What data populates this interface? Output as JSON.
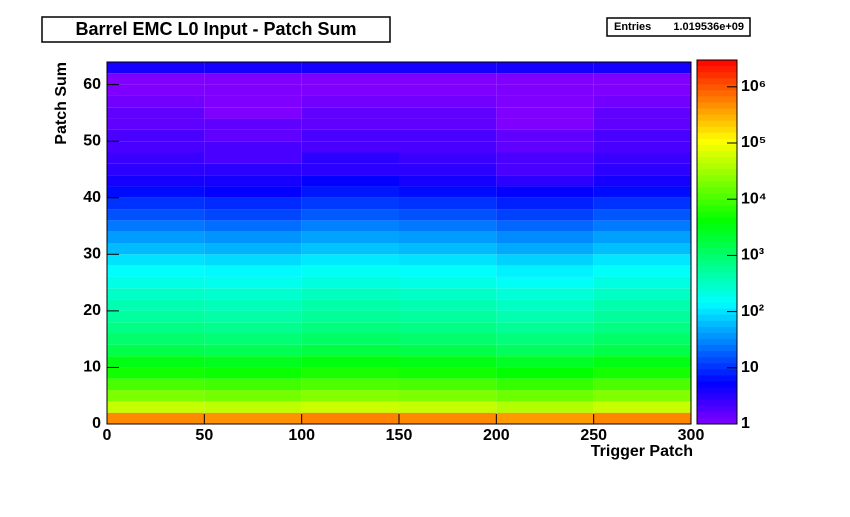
{
  "chart_data": {
    "type": "heatmap",
    "title": "Barrel EMC L0 Input - Patch Sum",
    "stats": {
      "label": "Entries",
      "value": "1.019536e+09"
    },
    "xlabel": "Trigger Patch",
    "ylabel": "Patch Sum",
    "xbins": [
      0,
      50,
      100,
      150,
      200,
      250,
      300
    ],
    "ybins": [
      0,
      2,
      4,
      6,
      8,
      10,
      12,
      14,
      16,
      18,
      20,
      22,
      24,
      26,
      28,
      30,
      32,
      34,
      36,
      38,
      40,
      42,
      44,
      46,
      48,
      50,
      52,
      54,
      56,
      58,
      60,
      62,
      64
    ],
    "z": [
      [
        500000,
        450000,
        550000,
        500000,
        400000,
        520000
      ],
      [
        50000,
        45000,
        55000,
        50000,
        40000,
        52000
      ],
      [
        20000,
        18000,
        22000,
        20000,
        16000,
        21000
      ],
      [
        10000,
        9000,
        11000,
        10000,
        8000,
        10500
      ],
      [
        5000,
        4500,
        5500,
        5000,
        4000,
        5200
      ],
      [
        3000,
        2700,
        3300,
        3000,
        2400,
        3100
      ],
      [
        1500,
        1350,
        1650,
        1500,
        1200,
        1550
      ],
      [
        1000,
        900,
        1100,
        1000,
        800,
        1050
      ],
      [
        700,
        630,
        770,
        700,
        560,
        730
      ],
      [
        500,
        450,
        550,
        500,
        400,
        520
      ],
      [
        400,
        360,
        440,
        400,
        320,
        420
      ],
      [
        300,
        270,
        330,
        300,
        240,
        310
      ],
      [
        200,
        180,
        220,
        200,
        160,
        210
      ],
      [
        150,
        135,
        165,
        150,
        120,
        155
      ],
      [
        100,
        90,
        110,
        100,
        80,
        105
      ],
      [
        60,
        54,
        66,
        60,
        48,
        63
      ],
      [
        40,
        36,
        44,
        40,
        32,
        42
      ],
      [
        25,
        22,
        28,
        25,
        20,
        26
      ],
      [
        15,
        13,
        17,
        15,
        12,
        16
      ],
      [
        10,
        9,
        11,
        10,
        8,
        10
      ],
      [
        6,
        5,
        7,
        6,
        5,
        6
      ],
      [
        4,
        4,
        5,
        4,
        3,
        4
      ],
      [
        3,
        3,
        3,
        3,
        2,
        3
      ],
      [
        2.5,
        2,
        3,
        2.5,
        2,
        2.5
      ],
      [
        2,
        2,
        2,
        2,
        1.5,
        2
      ],
      [
        2,
        1.5,
        2,
        2,
        1.5,
        2
      ],
      [
        1.5,
        1.5,
        1.5,
        1.5,
        1,
        1.5
      ],
      [
        1.5,
        1,
        1.5,
        1.5,
        1,
        1.5
      ],
      [
        1.2,
        1,
        1.2,
        1.2,
        1,
        1.2
      ],
      [
        1,
        1,
        1,
        1,
        1,
        1
      ],
      [
        1,
        1,
        1,
        1,
        1,
        1
      ],
      [
        4,
        4,
        4,
        4,
        4,
        4
      ]
    ],
    "xlim": [
      0,
      300
    ],
    "xticks": [
      0,
      50,
      100,
      150,
      200,
      250,
      300
    ],
    "ylim": [
      0,
      64
    ],
    "yticks": [
      0,
      10,
      20,
      30,
      40,
      50,
      60
    ],
    "zlim": [
      1,
      3000000
    ],
    "zlog": true,
    "zticks": [
      1,
      10,
      {
        "value": 100,
        "label": "10²"
      },
      {
        "value": 1000,
        "label": "10³"
      },
      {
        "value": 10000,
        "label": "10⁴"
      },
      {
        "value": 100000,
        "label": "10⁵"
      },
      {
        "value": 1000000,
        "label": "10⁶"
      }
    ]
  }
}
